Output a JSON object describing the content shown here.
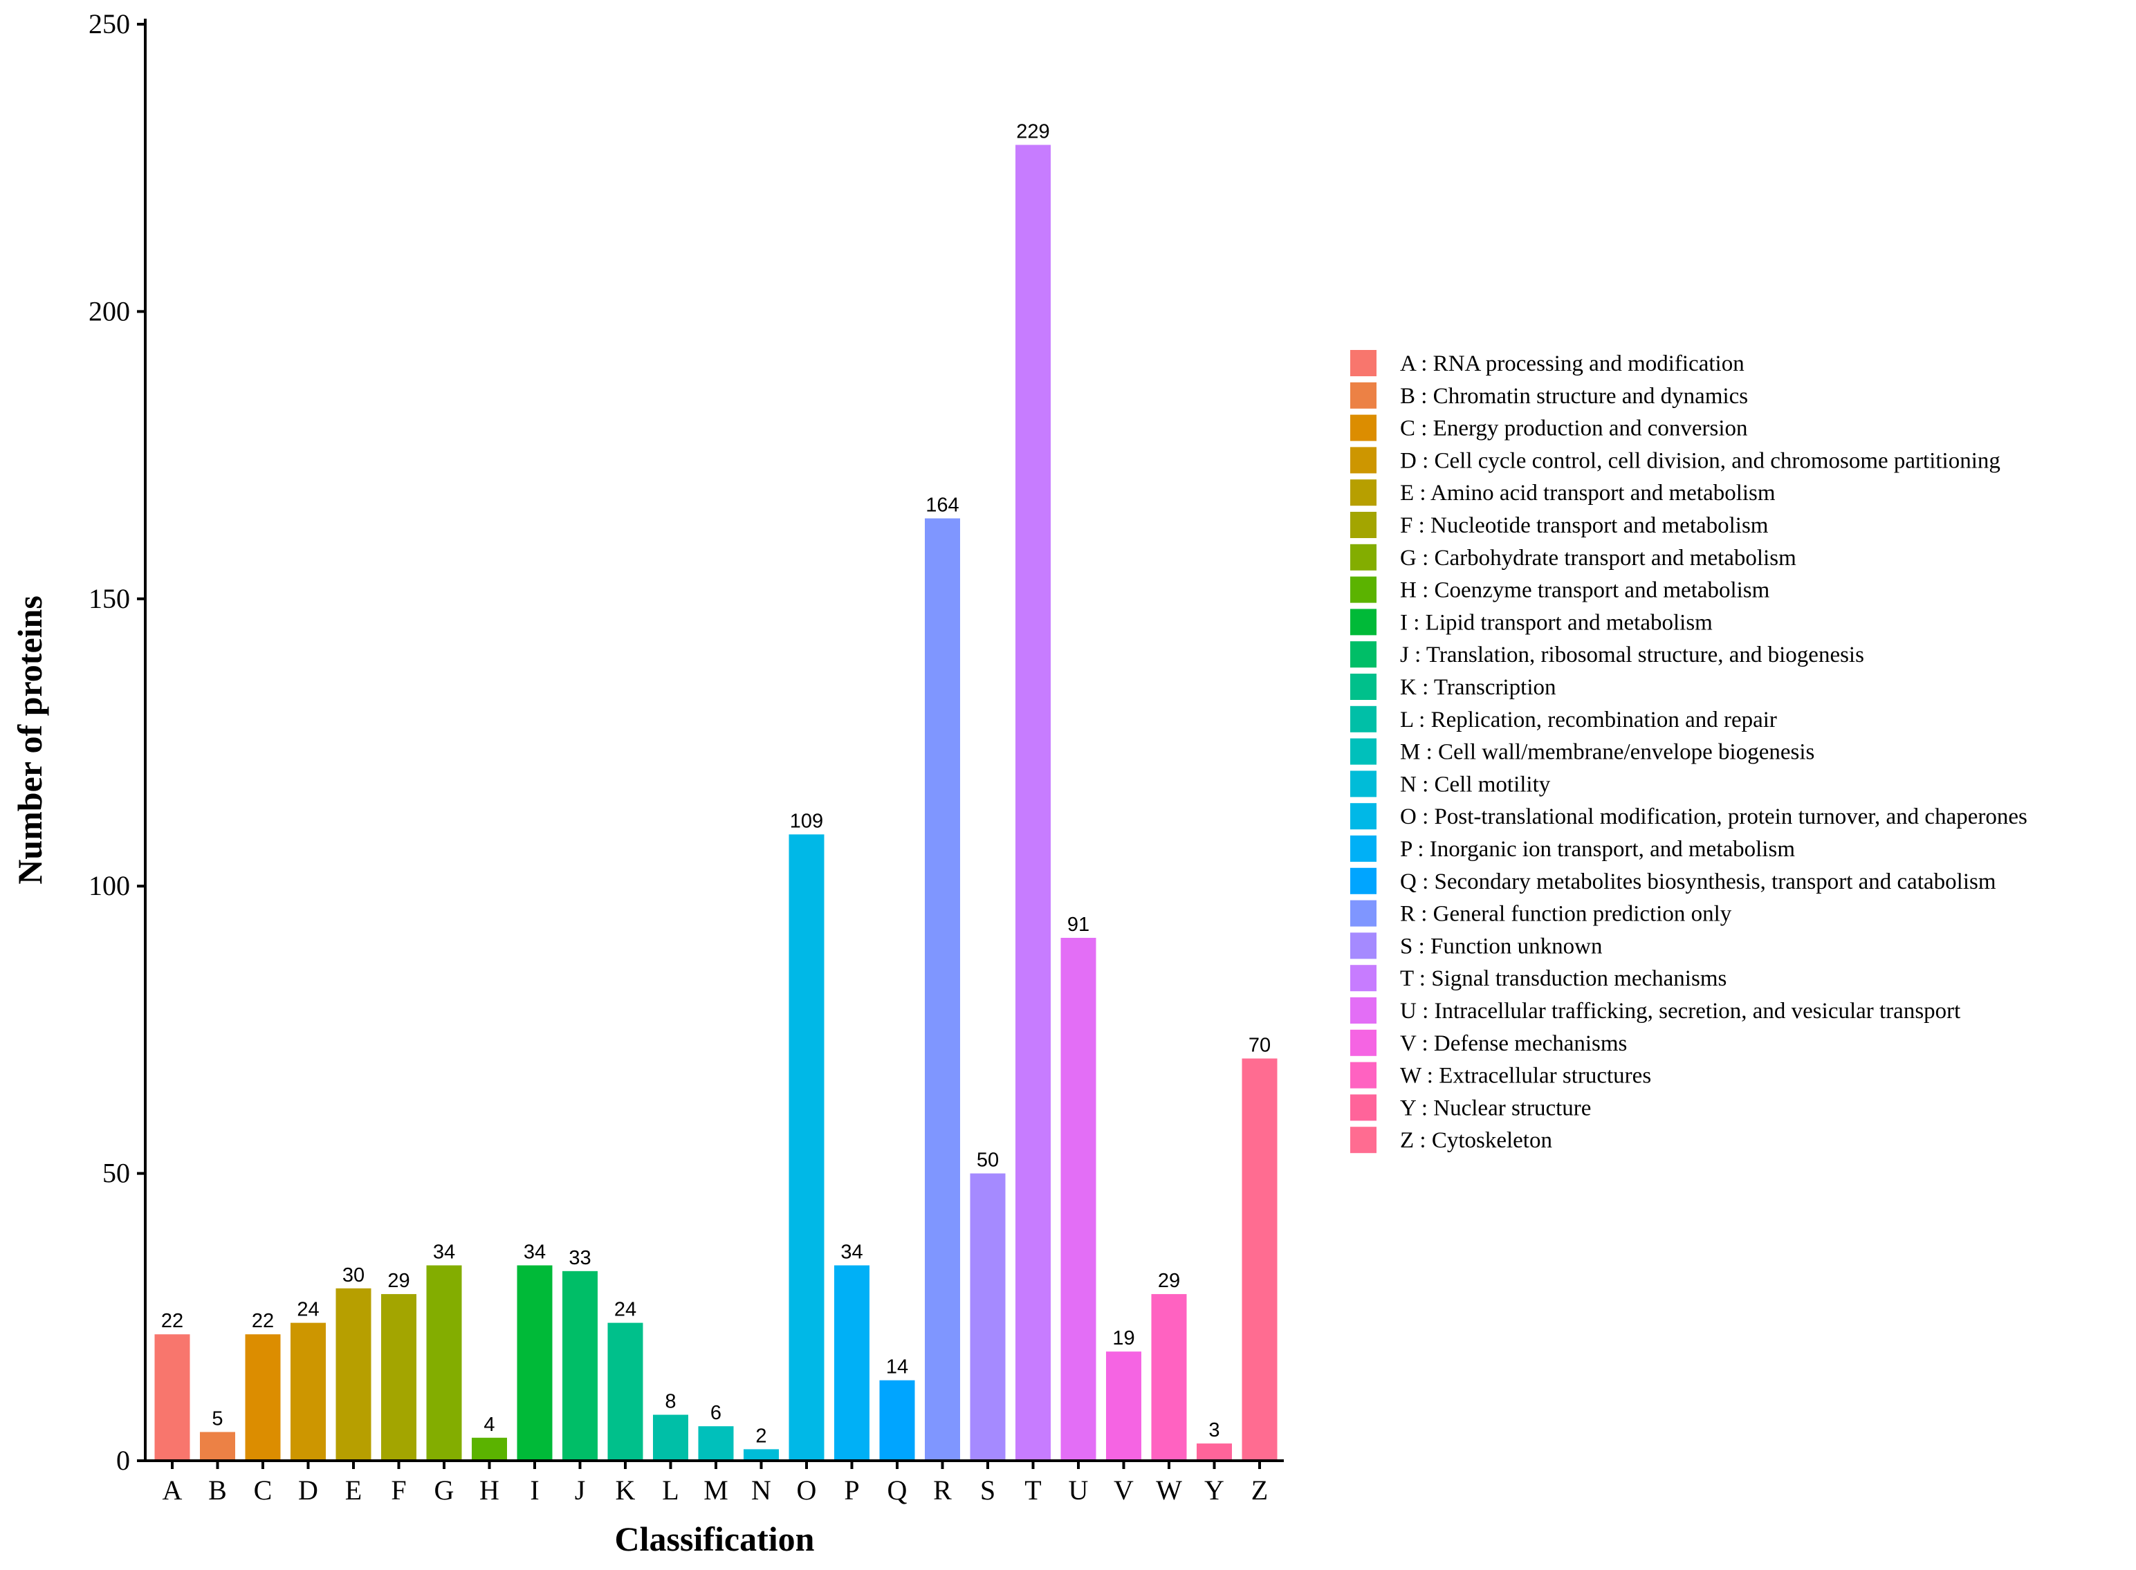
{
  "chart_data": {
    "type": "bar",
    "title": "",
    "xlabel": "Classification",
    "ylabel": "Number of proteins",
    "ylim": [
      0,
      250
    ],
    "yticks": [
      0,
      50,
      100,
      150,
      200,
      250
    ],
    "grid": false,
    "legend_position": "right",
    "categories": [
      "A",
      "B",
      "C",
      "D",
      "E",
      "F",
      "G",
      "H",
      "I",
      "J",
      "K",
      "L",
      "M",
      "N",
      "O",
      "P",
      "Q",
      "R",
      "S",
      "T",
      "U",
      "V",
      "W",
      "Y",
      "Z"
    ],
    "values": [
      22,
      5,
      22,
      24,
      30,
      29,
      34,
      4,
      34,
      33,
      24,
      8,
      6,
      2,
      109,
      34,
      14,
      164,
      50,
      229,
      91,
      19,
      29,
      3,
      70
    ],
    "colors": [
      "#F8766D",
      "#EC8145",
      "#DC8D00",
      "#CD9600",
      "#B79F00",
      "#A3A500",
      "#83AD00",
      "#5BB300",
      "#00BA38",
      "#00BE67",
      "#00C08B",
      "#00BFA7",
      "#00C0BB",
      "#00BCD8",
      "#00B8E7",
      "#00B0F6",
      "#00A5FF",
      "#7F96FF",
      "#A58AFF",
      "#C77CFF",
      "#E36EF6",
      "#F564E3",
      "#FF62C1",
      "#FF649A",
      "#FF6C91"
    ],
    "legend": [
      "A : RNA processing and modification",
      "B : Chromatin structure and dynamics",
      "C : Energy production and conversion",
      "D : Cell cycle control, cell division, and chromosome partitioning",
      "E : Amino acid transport and metabolism",
      "F : Nucleotide transport and metabolism",
      "G : Carbohydrate transport and metabolism",
      "H : Coenzyme transport and metabolism",
      "I : Lipid transport and metabolism",
      "J : Translation, ribosomal structure, and biogenesis",
      "K : Transcription",
      "L : Replication, recombination and repair",
      "M : Cell wall/membrane/envelope biogenesis",
      "N : Cell motility",
      "O : Post-translational modification, protein turnover, and chaperones",
      "P : Inorganic ion transport, and metabolism",
      "Q : Secondary metabolites biosynthesis, transport and catabolism",
      "R : General function prediction only",
      "S : Function unknown",
      "T : Signal transduction mechanisms",
      "U : Intracellular trafficking, secretion, and vesicular transport",
      "V : Defense mechanisms",
      "W : Extracellular structures",
      "Y : Nuclear structure",
      "Z : Cytoskeleton"
    ]
  }
}
